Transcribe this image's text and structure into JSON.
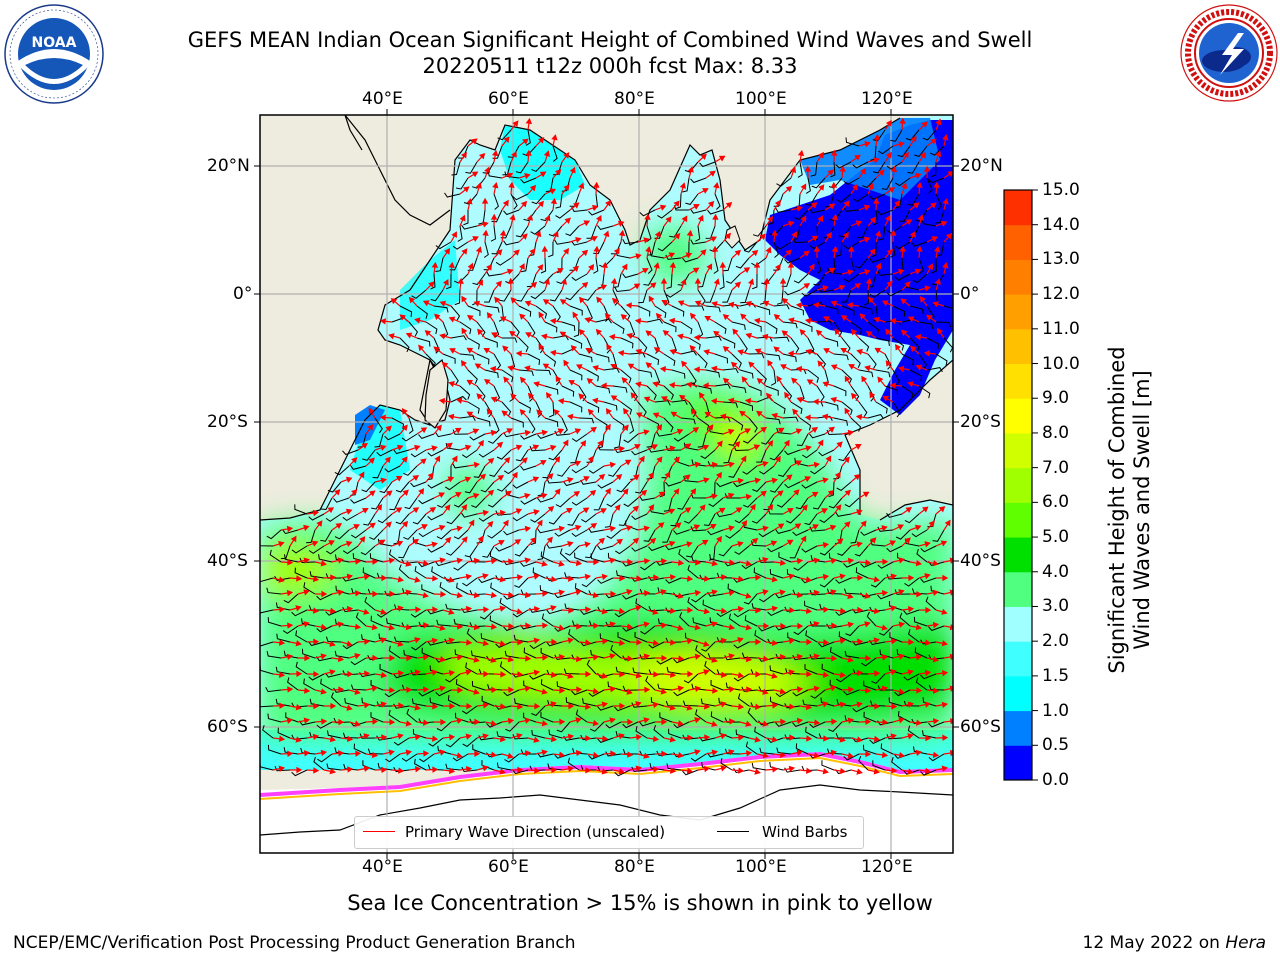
{
  "title": {
    "line1": "GEFS MEAN Indian Ocean Significant Height of Combined Wind Waves and Swell",
    "line2": "20220511 t12z 000h fcst   Max: 8.33"
  },
  "logos": {
    "noaa": {
      "name": "noaa-logo",
      "text": "NOAA",
      "ring_text": "NATIONAL OCEANIC AND ATMOSPHERIC ADMINISTRATION · U.S. DEPARTMENT OF COMMERCE"
    },
    "nws": {
      "name": "nws-logo",
      "ring_text": "NATIONAL WEATHER SERVICE"
    }
  },
  "map": {
    "region": "Indian Ocean",
    "lon_ticks_top": [
      "40°E",
      "60°E",
      "80°E",
      "100°E",
      "120°E"
    ],
    "lon_ticks_bottom": [
      "40°E",
      "60°E",
      "80°E",
      "100°E",
      "120°E"
    ],
    "lat_ticks_left": [
      "20°N",
      "0°",
      "20°S",
      "40°S",
      "60°S"
    ],
    "lat_ticks_right": [
      "20°N",
      "0°",
      "20°S",
      "40°S",
      "60°S"
    ],
    "max_wave_height_m": 8.33,
    "colors": {
      "land": "#eeecde",
      "ocean_light": "#aefcff",
      "coast": "#000000",
      "arrows": "#ff0000",
      "barbs": "#000000",
      "ice": "#ffffff"
    }
  },
  "colorbar": {
    "label": "Significant Height of Combined Wind Waves and Swell [m]",
    "label_line1": "Significant Height of Combined",
    "label_line2": "Wind Waves and Swell [m]",
    "ticks": [
      "15.0",
      "14.0",
      "13.0",
      "12.0",
      "11.0",
      "10.0",
      "9.0",
      "8.0",
      "7.0",
      "6.0",
      "5.0",
      "4.0",
      "3.0",
      "2.0",
      "1.5",
      "1.0",
      "0.5",
      "0.0"
    ],
    "colors": [
      "#0000ff",
      "#0080ff",
      "#00ffff",
      "#40ffff",
      "#a0ffff",
      "#50ff80",
      "#00e000",
      "#60ff00",
      "#a0ff00",
      "#d0ff00",
      "#ffff00",
      "#ffe000",
      "#ffc000",
      "#ffa000",
      "#ff8000",
      "#ff6000",
      "#ff3000"
    ]
  },
  "legend": {
    "items": [
      {
        "label": "Primary Wave Direction (unscaled)",
        "color": "#ff0000"
      },
      {
        "label": "Wind Barbs",
        "color": "#000000"
      }
    ]
  },
  "footnote": "Sea Ice Concentration > 15% is shown in pink to yellow",
  "credits": {
    "left": "NCEP/EMC/Verification Post Processing Product Generation Branch",
    "right_date": "12 May 2022 on ",
    "right_host": "Hera"
  }
}
